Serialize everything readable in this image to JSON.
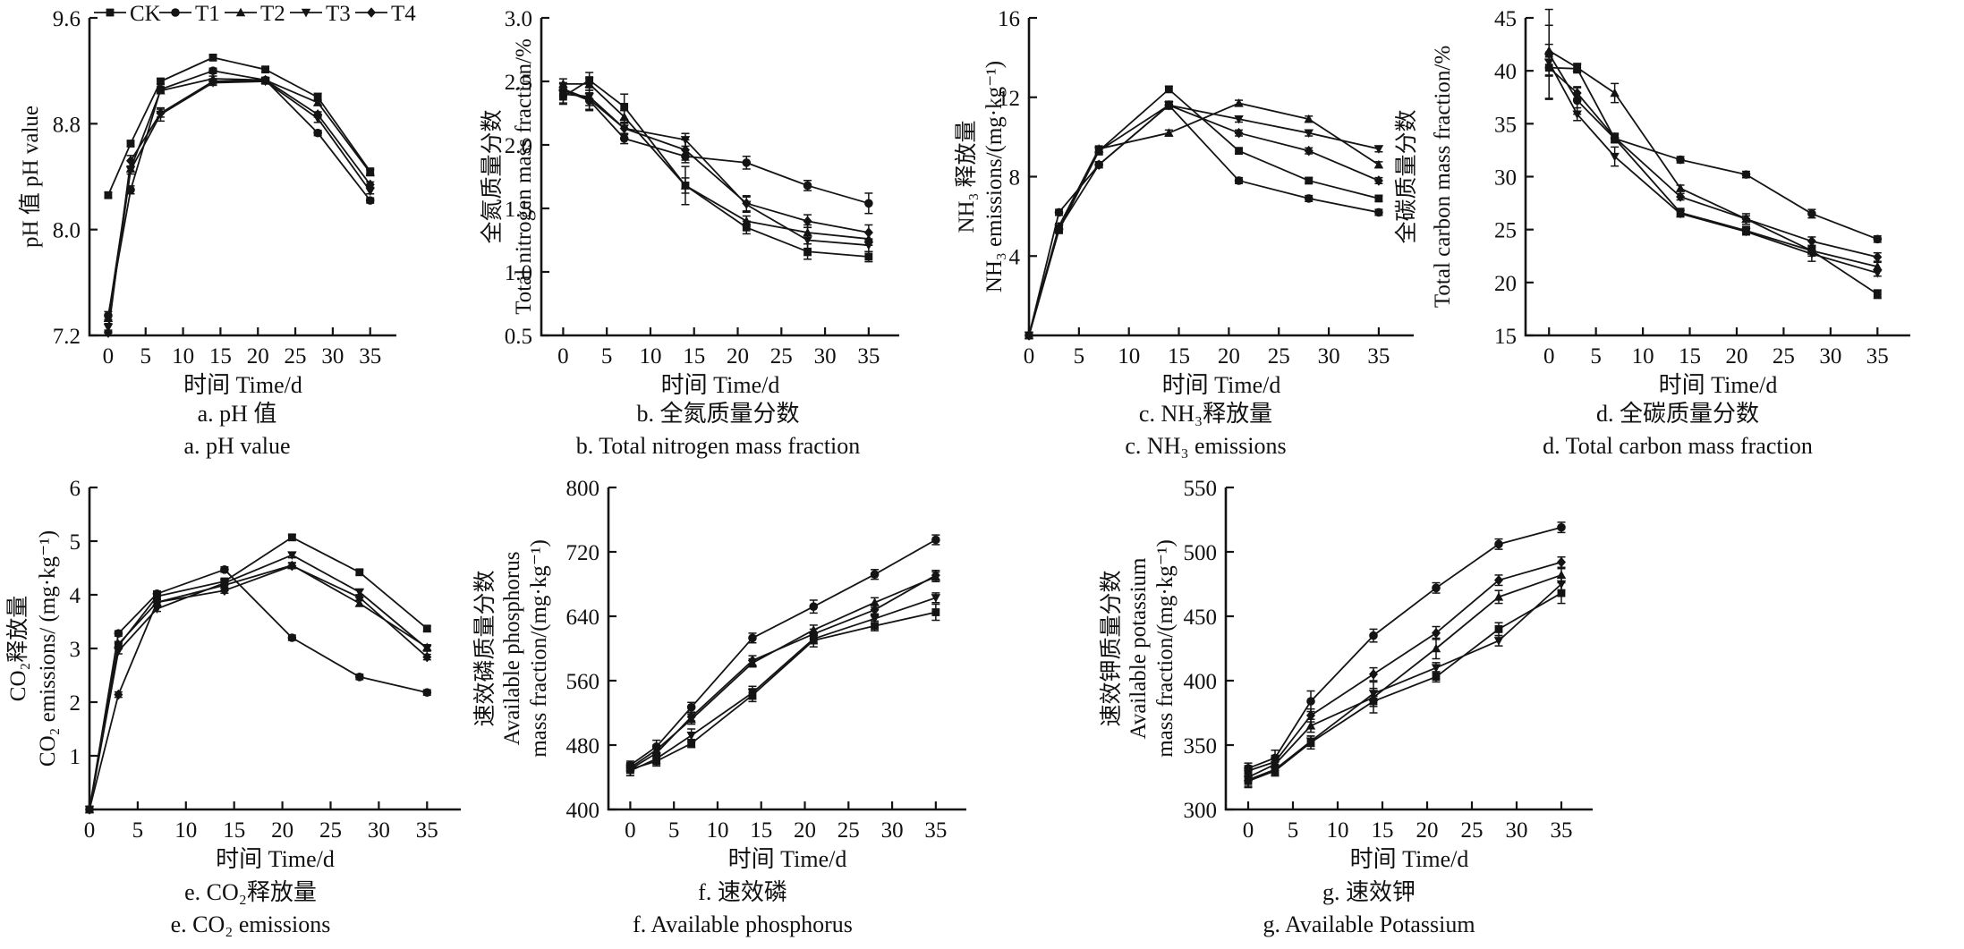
{
  "figure": {
    "background": "#ffffff",
    "ink_color": "#141414"
  },
  "legend": {
    "position": "top-of-chart-a",
    "entries": [
      {
        "label": "CK",
        "marker": "square"
      },
      {
        "label": "T1",
        "marker": "circle"
      },
      {
        "label": "T2",
        "marker": "triangle-up"
      },
      {
        "label": "T3",
        "marker": "triangle-down"
      },
      {
        "label": "T4",
        "marker": "diamond"
      }
    ]
  },
  "chart_data": [
    {
      "id": "a",
      "type": "line",
      "show_legend": true,
      "caption_zh": "a. pH 值",
      "caption_en": "a. pH value",
      "xlabel_zh": "时间",
      "xlabel_en": "Time/d",
      "ylabel_lines": [
        "pH 值 pH value"
      ],
      "xlim": [
        -2.5,
        38.5
      ],
      "ylim": [
        7.2,
        9.6
      ],
      "xticks": [
        0,
        5,
        10,
        15,
        20,
        25,
        30,
        35
      ],
      "yticks": [
        "7.2",
        "8.0",
        "8.8",
        "9.6"
      ],
      "grid": false,
      "x": [
        0,
        3,
        7,
        14,
        21,
        28,
        35
      ],
      "series": [
        {
          "name": "CK",
          "marker": "square",
          "values": [
            8.26,
            8.65,
            9.12,
            9.3,
            9.21,
            9.0,
            8.44
          ],
          "err": [
            0.02,
            0.02,
            0.02,
            0.02,
            0.02,
            0.03,
            0.02
          ]
        },
        {
          "name": "T1",
          "marker": "circle",
          "values": [
            7.35,
            8.3,
            9.06,
            9.2,
            9.13,
            8.73,
            8.22
          ],
          "err": [
            0.03,
            0.03,
            0.02,
            0.02,
            0.02,
            0.02,
            0.02
          ]
        },
        {
          "name": "T2",
          "marker": "triangle-up",
          "values": [
            7.33,
            8.46,
            9.05,
            9.14,
            9.13,
            8.96,
            8.43
          ],
          "err": [
            0.02,
            0.02,
            0.02,
            0.02,
            0.02,
            0.02,
            0.02
          ]
        },
        {
          "name": "T3",
          "marker": "triangle-down",
          "values": [
            7.26,
            8.45,
            8.87,
            9.11,
            9.12,
            8.84,
            8.29
          ],
          "err": [
            0.03,
            0.03,
            0.05,
            0.02,
            0.02,
            0.03,
            0.02
          ]
        },
        {
          "name": "T4",
          "marker": "diamond",
          "values": [
            7.22,
            8.52,
            8.88,
            9.12,
            9.13,
            8.87,
            8.34
          ],
          "err": [
            0.02,
            0.04,
            0.03,
            0.02,
            0.02,
            0.02,
            0.02
          ]
        }
      ]
    },
    {
      "id": "b",
      "type": "line",
      "show_legend": false,
      "caption_zh": "b. 全氮质量分数",
      "caption_en": "b. Total nitrogen mass fraction",
      "xlabel_zh": "时间",
      "xlabel_en": "Time/d",
      "ylabel_lines": [
        "全氮质量分数",
        "Total nitrogen mass fraction/%"
      ],
      "xlim": [
        -2.5,
        38.5
      ],
      "ylim": [
        0.5,
        3.0
      ],
      "xticks": [
        0,
        5,
        10,
        15,
        20,
        25,
        30,
        35
      ],
      "yticks": [
        "0.5",
        "1.0",
        "1.5",
        "2.0",
        "2.5",
        "3.0"
      ],
      "grid": false,
      "x": [
        0,
        3,
        7,
        14,
        21,
        28,
        35
      ],
      "series": [
        {
          "name": "CK",
          "marker": "square",
          "values": [
            2.38,
            2.51,
            2.3,
            1.68,
            1.35,
            1.16,
            1.12
          ],
          "err": [
            0.05,
            0.06,
            0.1,
            0.15,
            0.05,
            0.06,
            0.04
          ]
        },
        {
          "name": "T1",
          "marker": "circle",
          "values": [
            2.43,
            2.35,
            2.05,
            1.91,
            1.86,
            1.68,
            1.54
          ],
          "err": [
            0.05,
            0.08,
            0.04,
            0.05,
            0.05,
            0.04,
            0.08
          ]
        },
        {
          "name": "T2",
          "marker": "triangle-up",
          "values": [
            2.48,
            2.48,
            2.22,
            1.68,
            1.4,
            1.31,
            1.26
          ],
          "err": [
            0.04,
            0.05,
            0.05,
            0.06,
            0.04,
            0.04,
            0.05
          ]
        },
        {
          "name": "T3",
          "marker": "triangle-down",
          "values": [
            2.4,
            2.38,
            2.13,
            2.04,
            1.53,
            1.25,
            1.21
          ],
          "err": [
            0.08,
            0.1,
            0.05,
            0.05,
            0.06,
            0.12,
            0.05
          ]
        },
        {
          "name": "T4",
          "marker": "diamond",
          "values": [
            2.44,
            2.36,
            2.13,
            1.96,
            1.54,
            1.4,
            1.31
          ],
          "err": [
            0.05,
            0.05,
            0.04,
            0.08,
            0.06,
            0.05,
            0.06
          ]
        }
      ]
    },
    {
      "id": "c",
      "type": "line",
      "show_legend": false,
      "caption_zh": "c. NH₃释放量",
      "caption_en": "c. NH₃ emissions",
      "xlabel_zh": "时间",
      "xlabel_en": "Time/d",
      "ylabel_lines": [
        "NH₃ 释放量",
        "NH₃ emissions/(mg·kg⁻¹)"
      ],
      "xlim": [
        0,
        38.5
      ],
      "ylim": [
        0,
        16
      ],
      "xticks": [
        0,
        5,
        10,
        15,
        20,
        25,
        30,
        35
      ],
      "yticks": [
        "4",
        "8",
        "12",
        "16"
      ],
      "grid": false,
      "x": [
        0,
        3,
        7,
        14,
        21,
        28,
        35
      ],
      "series": [
        {
          "name": "CK",
          "marker": "square",
          "values": [
            0,
            5.3,
            9.3,
            12.4,
            9.3,
            7.8,
            6.9
          ],
          "err": [
            0,
            0.15,
            0.2,
            0.15,
            0.15,
            0.15,
            0.15
          ]
        },
        {
          "name": "T1",
          "marker": "circle",
          "values": [
            0,
            6.2,
            8.6,
            11.6,
            7.8,
            6.9,
            6.2
          ],
          "err": [
            0,
            0.15,
            0.15,
            0.2,
            0.15,
            0.15,
            0.15
          ]
        },
        {
          "name": "T2",
          "marker": "triangle-up",
          "values": [
            0,
            5.5,
            9.4,
            10.2,
            11.7,
            10.9,
            8.6
          ],
          "err": [
            0,
            0.15,
            0.15,
            0.15,
            0.15,
            0.15,
            0.15
          ]
        },
        {
          "name": "T3",
          "marker": "triangle-down",
          "values": [
            0,
            5.4,
            9.3,
            11.6,
            10.9,
            10.2,
            9.4
          ],
          "err": [
            0,
            0.15,
            0.15,
            0.15,
            0.15,
            0.15,
            0.15
          ]
        },
        {
          "name": "T4",
          "marker": "diamond",
          "values": [
            0,
            5.4,
            8.6,
            11.6,
            10.2,
            9.3,
            7.8
          ],
          "err": [
            0,
            0.15,
            0.15,
            0.15,
            0.15,
            0.15,
            0.15
          ]
        }
      ]
    },
    {
      "id": "d",
      "type": "line",
      "show_legend": false,
      "caption_zh": "d. 全碳质量分数",
      "caption_en": "d. Total carbon mass fraction",
      "xlabel_zh": "时间",
      "xlabel_en": "Time/d",
      "ylabel_lines": [
        "全碳质量分数",
        "Total carbon mass fraction/%"
      ],
      "xlim": [
        -2.5,
        38.5
      ],
      "ylim": [
        15,
        45
      ],
      "xticks": [
        0,
        5,
        10,
        15,
        20,
        25,
        30,
        35
      ],
      "yticks": [
        "15",
        "20",
        "25",
        "30",
        "35",
        "40",
        "45"
      ],
      "grid": false,
      "x": [
        0,
        3,
        7,
        14,
        21,
        28,
        35
      ],
      "series": [
        {
          "name": "CK",
          "marker": "square",
          "values": [
            40.3,
            40.2,
            33.6,
            26.6,
            24.9,
            23.0,
            18.9
          ],
          "err": [
            0.8,
            0.4,
            0.4,
            0.4,
            0.4,
            0.5,
            0.4
          ]
        },
        {
          "name": "T1",
          "marker": "circle",
          "values": [
            41.6,
            37.2,
            33.6,
            31.6,
            30.2,
            26.5,
            24.1
          ],
          "err": [
            4.2,
            1.3,
            0.4,
            0.3,
            0.3,
            0.4,
            0.3
          ]
        },
        {
          "name": "T2",
          "marker": "triangle-up",
          "values": [
            41.9,
            40.3,
            37.9,
            28.9,
            26.0,
            23.0,
            21.5
          ],
          "err": [
            0.6,
            0.4,
            0.9,
            0.3,
            0.5,
            0.3,
            0.4
          ]
        },
        {
          "name": "T3",
          "marker": "triangle-down",
          "values": [
            40.8,
            35.9,
            31.9,
            26.5,
            24.8,
            22.7,
            20.9
          ],
          "err": [
            3.5,
            0.6,
            0.9,
            0.3,
            0.3,
            0.7,
            0.3
          ]
        },
        {
          "name": "T4",
          "marker": "diamond",
          "values": [
            40.3,
            37.9,
            33.7,
            28.1,
            26.0,
            23.9,
            22.4
          ],
          "err": [
            0.7,
            0.5,
            0.4,
            0.3,
            0.3,
            0.4,
            0.4
          ]
        }
      ]
    },
    {
      "id": "e",
      "type": "line",
      "show_legend": false,
      "caption_zh": "e. CO₂释放量",
      "caption_en": "e. CO₂ emissions",
      "xlabel_zh": "时间",
      "xlabel_en": "Time/d",
      "ylabel_lines": [
        "CO₂释放量",
        "CO₂ emissions/ (mg·kg⁻¹)"
      ],
      "xlim": [
        0,
        38.5
      ],
      "ylim": [
        0,
        6
      ],
      "xticks": [
        0,
        5,
        10,
        15,
        20,
        25,
        30,
        35
      ],
      "yticks": [
        "1",
        "2",
        "3",
        "4",
        "5",
        "6"
      ],
      "grid": false,
      "x": [
        0,
        3,
        7,
        14,
        21,
        28,
        35
      ],
      "series": [
        {
          "name": "CK",
          "marker": "square",
          "values": [
            0,
            3.05,
            3.97,
            4.25,
            5.07,
            4.42,
            3.37
          ],
          "err": [
            0,
            0.05,
            0.05,
            0.05,
            0.05,
            0.05,
            0.05
          ]
        },
        {
          "name": "T1",
          "marker": "circle",
          "values": [
            0,
            3.28,
            4.02,
            4.47,
            3.2,
            2.47,
            2.18
          ],
          "err": [
            0,
            0.05,
            0.05,
            0.05,
            0.05,
            0.05,
            0.05
          ]
        },
        {
          "name": "T2",
          "marker": "triangle-up",
          "values": [
            0,
            3.08,
            3.86,
            4.18,
            4.55,
            3.84,
            3.02
          ],
          "err": [
            0,
            0.05,
            0.05,
            0.05,
            0.05,
            0.05,
            0.05
          ]
        },
        {
          "name": "T3",
          "marker": "triangle-down",
          "values": [
            0,
            2.95,
            3.74,
            4.22,
            4.74,
            4.05,
            3.0
          ],
          "err": [
            0,
            0.05,
            0.05,
            0.05,
            0.05,
            0.05,
            0.05
          ]
        },
        {
          "name": "T4",
          "marker": "diamond",
          "values": [
            0,
            2.14,
            3.86,
            4.08,
            4.54,
            3.95,
            2.84
          ],
          "err": [
            0,
            0.05,
            0.05,
            0.05,
            0.05,
            0.05,
            0.05
          ]
        }
      ]
    },
    {
      "id": "f",
      "type": "line",
      "show_legend": false,
      "caption_zh": "f. 速效磷",
      "caption_en": "f. Available phosphorus",
      "xlabel_zh": "时间",
      "xlabel_en": "Time/d",
      "ylabel_lines": [
        "速效磷质量分数",
        "Available phosphorus",
        "mass fraction/(mg·kg⁻¹)"
      ],
      "xlim": [
        -2.5,
        38.5
      ],
      "ylim": [
        400,
        800
      ],
      "xticks": [
        0,
        5,
        10,
        15,
        20,
        25,
        30,
        35
      ],
      "yticks": [
        "400",
        "480",
        "560",
        "640",
        "720",
        "800"
      ],
      "grid": false,
      "x": [
        0,
        3,
        7,
        14,
        21,
        28,
        35
      ],
      "series": [
        {
          "name": "CK",
          "marker": "square",
          "values": [
            450,
            460,
            482,
            542,
            610,
            628,
            645
          ],
          "err": [
            8,
            6,
            5,
            8,
            8,
            6,
            10
          ]
        },
        {
          "name": "T1",
          "marker": "circle",
          "values": [
            455,
            478,
            527,
            613,
            652,
            692,
            735
          ],
          "err": [
            5,
            8,
            6,
            6,
            8,
            6,
            6
          ]
        },
        {
          "name": "T2",
          "marker": "triangle-up",
          "values": [
            452,
            474,
            512,
            582,
            623,
            657,
            689
          ],
          "err": [
            5,
            6,
            6,
            5,
            6,
            6,
            6
          ]
        },
        {
          "name": "T3",
          "marker": "triangle-down",
          "values": [
            448,
            463,
            492,
            545,
            612,
            637,
            663
          ],
          "err": [
            6,
            6,
            8,
            8,
            6,
            6,
            6
          ]
        },
        {
          "name": "T4",
          "marker": "diamond",
          "values": [
            450,
            470,
            515,
            585,
            618,
            648,
            691
          ],
          "err": [
            5,
            6,
            5,
            6,
            6,
            6,
            6
          ]
        }
      ]
    },
    {
      "id": "g",
      "type": "line",
      "show_legend": false,
      "caption_zh": "g. 速效钾",
      "caption_en": "g. Available Potassium",
      "xlabel_zh": "时间",
      "xlabel_en": "Time/d",
      "ylabel_lines": [
        "速效钾质量分数",
        "Available potassium",
        "mass fraction/(mg·kg⁻¹)"
      ],
      "xlim": [
        -2.5,
        38.5
      ],
      "ylim": [
        300,
        550
      ],
      "xticks": [
        0,
        5,
        10,
        15,
        20,
        25,
        30,
        35
      ],
      "yticks": [
        "300",
        "350",
        "400",
        "450",
        "500",
        "550"
      ],
      "grid": false,
      "x": [
        0,
        3,
        7,
        14,
        21,
        28,
        35
      ],
      "series": [
        {
          "name": "CK",
          "marker": "square",
          "values": [
            322,
            330,
            352,
            384,
            403,
            440,
            468
          ],
          "err": [
            5,
            4,
            5,
            4,
            4,
            5,
            8
          ]
        },
        {
          "name": "T1",
          "marker": "circle",
          "values": [
            332,
            340,
            384,
            435,
            472,
            506,
            519
          ],
          "err": [
            4,
            6,
            8,
            5,
            4,
            4,
            4
          ]
        },
        {
          "name": "T2",
          "marker": "triangle-up",
          "values": [
            325,
            335,
            365,
            387,
            425,
            465,
            482
          ],
          "err": [
            4,
            5,
            5,
            12,
            8,
            5,
            5
          ]
        },
        {
          "name": "T3",
          "marker": "triangle-down",
          "values": [
            323,
            331,
            353,
            390,
            410,
            431,
            475
          ],
          "err": [
            5,
            4,
            4,
            4,
            4,
            4,
            5
          ]
        },
        {
          "name": "T4",
          "marker": "diamond",
          "values": [
            330,
            337,
            373,
            405,
            437,
            478,
            492
          ],
          "err": [
            4,
            5,
            5,
            5,
            5,
            4,
            4
          ]
        }
      ]
    }
  ]
}
